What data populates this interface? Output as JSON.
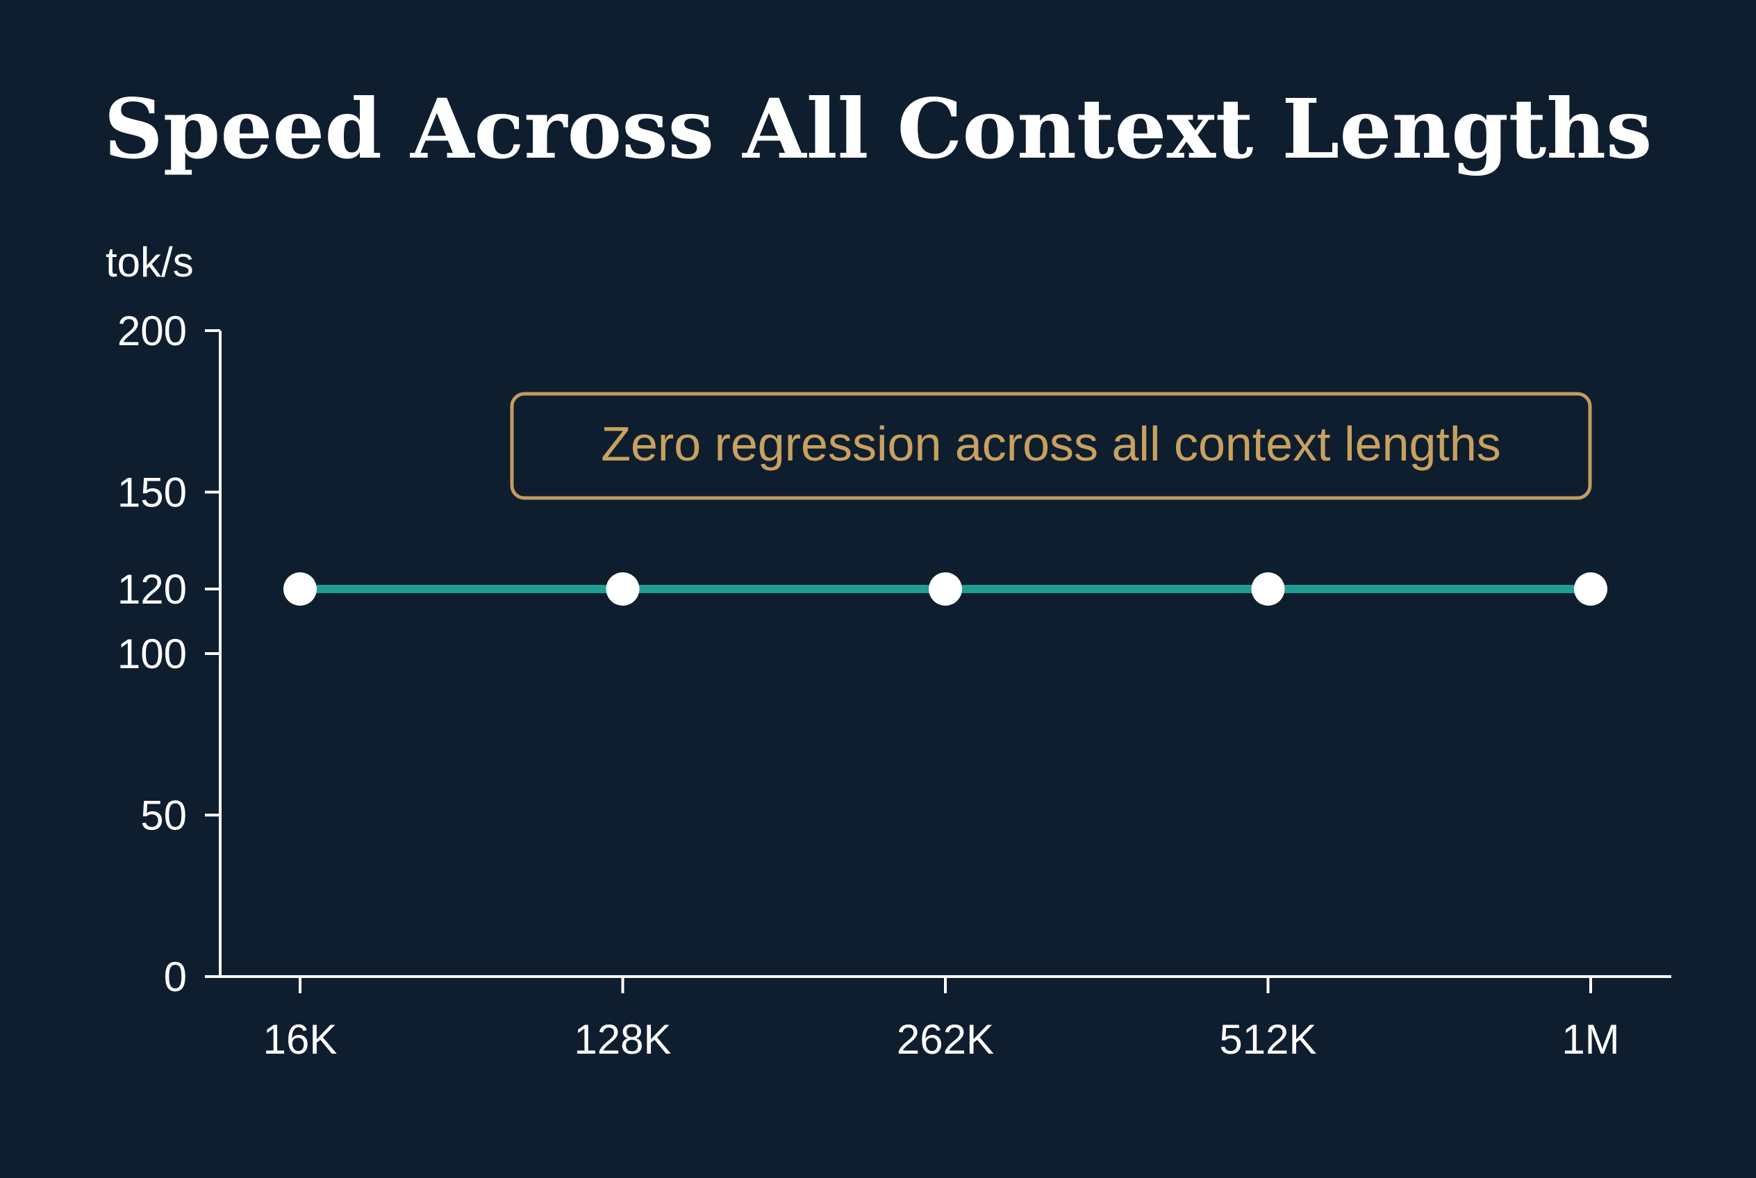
{
  "chart_data": {
    "type": "line",
    "title": "Speed Across All Context Lengths",
    "ylabel": "tok/s",
    "xlabel": "",
    "categories": [
      "16K",
      "128K",
      "262K",
      "512K",
      "1M"
    ],
    "series": [
      {
        "values": [
          120,
          120,
          120,
          120,
          120
        ]
      }
    ],
    "yticks": [
      0,
      50,
      100,
      120,
      150,
      200
    ],
    "ylim": [
      0,
      200
    ],
    "grid": false,
    "annotation": "Zero regression across all context lengths",
    "colors": {
      "background": "#0f1e2f",
      "line": "#1f9d91",
      "points": "#ffffff",
      "axis": "#ffffff",
      "text": "#ffffff",
      "annotation": "#c8a15f"
    }
  }
}
